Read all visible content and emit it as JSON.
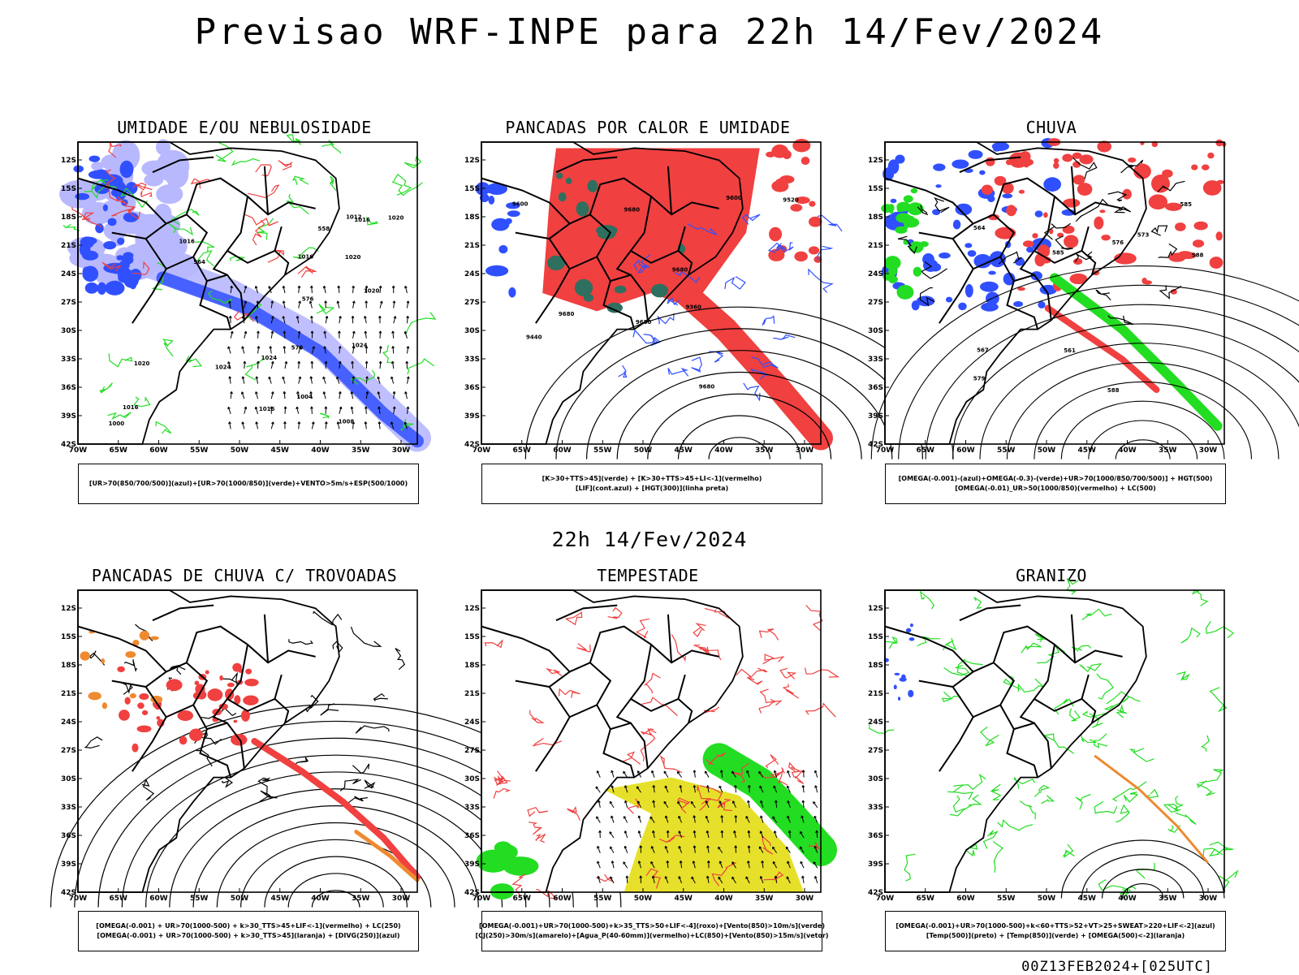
{
  "header": {
    "title": "Previsao WRF-INPE  para 22h 14/Fev/2024"
  },
  "middle": {
    "title": "22h 14/Fev/2024"
  },
  "footer": {
    "run": "00Z13FEB2024+[025UTC]"
  },
  "axes": {
    "lat_labels": [
      "12S",
      "15S",
      "18S",
      "21S",
      "24S",
      "27S",
      "30S",
      "33S",
      "36S",
      "39S",
      "42S"
    ],
    "lon_labels": [
      "70W",
      "65W",
      "60W",
      "55W",
      "50W",
      "45W",
      "40W",
      "35W",
      "30W"
    ]
  },
  "colors": {
    "blue": "#3050ff",
    "light_blue": "#b8b8ff",
    "green": "#22dd22",
    "red": "#f04040",
    "dark_teal": "#2f6f5f",
    "yellow": "#e6e02a",
    "orange": "#ee8a30",
    "purple": "#9020c0"
  },
  "panels": [
    {
      "id": "umidade",
      "title": "UMIDADE E/OU NEBULOSIDADE",
      "legend": [
        "[UR>70(850/700/500)](azul)+[UR>70(1000/850)](verde)+VENTO>5m/s+ESP(500/1000)"
      ],
      "contour_labels": [
        "1016",
        "1016",
        "1020",
        "1024",
        "1020",
        "1016",
        "1012",
        "1008",
        "1004",
        "1020",
        "1024",
        "1016",
        "1016",
        "1024",
        "1020",
        "1000",
        "576",
        "570",
        "564",
        "558"
      ]
    },
    {
      "id": "pancadas-calor",
      "title": "PANCADAS POR CALOR E UMIDADE",
      "legend": [
        "[K>30+TTS>45](verde) + [K>30+TTS>45+LI<-1](vermelho)",
        "[LIF](cont.azul) + [HGT(300)](linha preta)"
      ],
      "contour_labels": [
        "9680",
        "9680",
        "9680",
        "9680",
        "9600",
        "9600",
        "9520",
        "9440",
        "9360",
        "9680"
      ]
    },
    {
      "id": "chuva",
      "title": "CHUVA",
      "legend": [
        "[OMEGA(-0.001)-(azul)+OMEGA(-0.3)-(verde)+UR>70(1000/850/700/500)] + HGT(500)",
        "[OMEGA(-0.01)_UR>50(1000/850)(vermelho) + LC(500)"
      ],
      "contour_labels": [
        "588",
        "585",
        "588",
        "585",
        "579",
        "576",
        "573",
        "567",
        "564",
        "561"
      ]
    },
    {
      "id": "trovoadas",
      "title": "PANCADAS DE CHUVA C/ TROVOADAS",
      "legend": [
        "[OMEGA(-0.001) + UR>70(1000-500) + k>30_TTS>45+LIF<-1](vermelho) + LC(250)",
        "[OMEGA(-0.001) + UR>70(1000-500) + k>30_TTS>45](laranja) + [DIVG(250)](azul)"
      ],
      "contour_labels": []
    },
    {
      "id": "tempestade",
      "title": "TEMPESTADE",
      "legend": [
        "[OMEGA(-0.001)+UR>70(1000-500)+k>35_TTS>50+LIF<-4](roxo)+[Vento(850)>10m/s](verde)",
        "[CJ(250)>30m/s](amarelo)+[Agua_P(40-60mm)](vermelho)+LC(850)+[Vento(850)>15m/s](vetor)"
      ],
      "contour_labels": []
    },
    {
      "id": "granizo",
      "title": "GRANIZO",
      "legend": [
        "[OMEGA(-0.001)+UR>70(1000-500)+k<60+TTS>52+VT>25+SWEAT>220+LIF<-2](azul)",
        "[Temp(500)](preto) + [Temp(850)](verde) + [OMEGA(500)<-2](laranja)"
      ],
      "contour_labels": []
    }
  ]
}
